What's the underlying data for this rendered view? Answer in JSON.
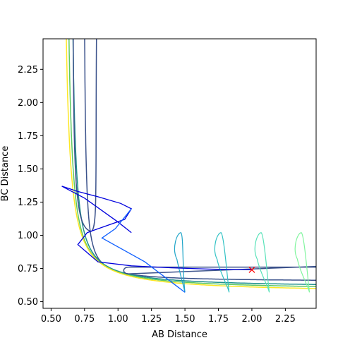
{
  "chart_data": {
    "type": "line",
    "title": "",
    "xlabel": "AB Distance",
    "ylabel": "BC Distance",
    "xlim": [
      0.44,
      2.48
    ],
    "ylim": [
      0.45,
      2.48
    ],
    "xticks": [
      "0.50",
      "0.75",
      "1.00",
      "1.25",
      "1.50",
      "1.75",
      "2.00",
      "2.25"
    ],
    "yticks": [
      "0.50",
      "0.75",
      "1.00",
      "1.25",
      "1.50",
      "1.75",
      "2.00",
      "2.25"
    ],
    "grid": false,
    "legend": "none",
    "contour_levels": [
      {
        "color": "#3b528b",
        "asymptote_x": 0.74,
        "asymptote_y": 0.65,
        "k": 0.02
      },
      {
        "color": "#21918c",
        "asymptote_x": 0.64,
        "asymptote_y": 0.605,
        "k": 0.045
      },
      {
        "color": "#5ec962",
        "asymptote_x": 0.605,
        "asymptote_y": 0.585,
        "k": 0.055
      },
      {
        "color": "#fde725",
        "asymptote_x": 0.58,
        "asymptote_y": 0.565,
        "k": 0.065
      }
    ],
    "inner_well": {
      "color": "#3b528b",
      "top_x": 0.84,
      "bottom_y": 1.03,
      "left_x": 0.74
    },
    "valley_contour": {
      "color": "#3b528b",
      "y_top": 0.76,
      "y_bottom": 0.71,
      "x_tip": 1.03
    },
    "ripple_contours": [
      {
        "color": "#1fa5c8",
        "x_top": 1.47,
        "x_bottom": 1.5,
        "x_back": 1.44
      },
      {
        "color": "#31c2c4",
        "x_top": 1.77,
        "x_bottom": 1.83,
        "x_back": 1.74
      },
      {
        "color": "#57e2b8",
        "x_top": 2.07,
        "x_bottom": 2.13,
        "x_back": 2.04
      },
      {
        "color": "#80f59e",
        "x_top": 2.37,
        "x_bottom": 2.43,
        "x_back": 2.34
      }
    ],
    "trajectory": {
      "color": "#0000dd",
      "x": [
        2.0,
        1.7,
        1.4,
        1.1,
        0.85,
        0.7,
        0.77,
        1.05,
        1.1,
        1.02,
        0.85,
        0.7,
        0.58,
        0.75,
        1.0,
        1.1
      ],
      "y": [
        0.74,
        0.745,
        0.755,
        0.77,
        0.8,
        0.93,
        1.02,
        1.12,
        1.2,
        1.24,
        1.29,
        1.33,
        1.37,
        1.28,
        1.1,
        1.02
      ]
    },
    "trajectory_tail": {
      "color": "#1060ff",
      "x": [
        1.1,
        0.98,
        0.88,
        1.2,
        1.5
      ],
      "y": [
        1.2,
        1.05,
        0.98,
        0.8,
        0.57
      ]
    },
    "marker": {
      "x": 2.0,
      "y": 0.74,
      "symbol": "x",
      "color": "#ff0000"
    }
  }
}
